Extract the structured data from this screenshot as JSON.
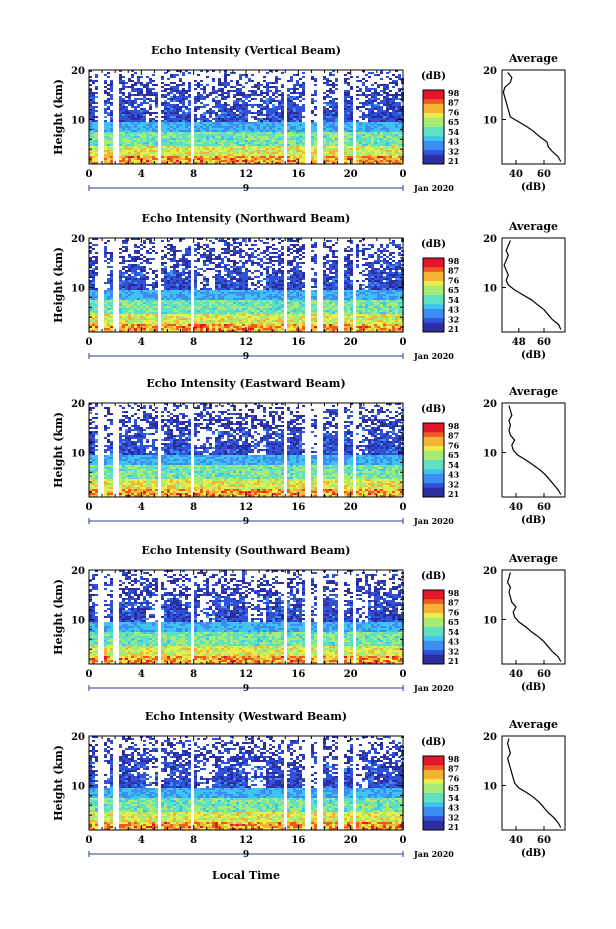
{
  "chart_data": [
    {
      "type": "heatmap",
      "title": "Echo Intensity (Vertical Beam)",
      "ylabel": "Height (km)",
      "ylim": [
        1,
        20
      ],
      "yticks": [
        "20",
        "10"
      ],
      "xticks": [
        "0",
        "4",
        "8",
        "12",
        "16",
        "20",
        "0"
      ],
      "xlim": [
        0,
        24
      ],
      "date_marker": "9",
      "date_label": "Jan 2020",
      "colorbar": {
        "unit": "(dB)",
        "ticks": [
          "98",
          "87",
          "76",
          "65",
          "54",
          "43",
          "32",
          "21"
        ]
      },
      "profile": {
        "title": "Average",
        "xlabel": "(dB)",
        "xticks": [
          "40",
          "60"
        ],
        "yticks": [
          "20",
          "10"
        ],
        "xlim": [
          30,
          75
        ],
        "heights": [
          1.5,
          2.5,
          3.5,
          4.5,
          5.5,
          6.5,
          7.5,
          8.5,
          9.5,
          10.5,
          11.5,
          12.5,
          13.5,
          14.5,
          15.5,
          16.5,
          17.5,
          18.5,
          19.5
        ],
        "values": [
          72,
          70,
          66,
          63,
          62,
          57,
          53,
          48,
          42,
          36,
          35,
          34,
          33,
          32,
          31,
          32,
          36,
          37,
          34
        ]
      }
    },
    {
      "type": "heatmap",
      "title": "Echo Intensity (Northward Beam)",
      "ylabel": "Height (km)",
      "ylim": [
        1,
        20
      ],
      "yticks": [
        "20",
        "10"
      ],
      "xticks": [
        "0",
        "4",
        "8",
        "12",
        "16",
        "20",
        "0"
      ],
      "xlim": [
        0,
        24
      ],
      "date_marker": "9",
      "date_label": "Jan 2020",
      "colorbar": {
        "unit": "(dB)",
        "ticks": [
          "98",
          "87",
          "76",
          "65",
          "54",
          "43",
          "32",
          "21"
        ]
      },
      "profile": {
        "title": "Average",
        "xlabel": "(dB)",
        "xticks": [
          "48",
          "60"
        ],
        "yticks": [
          "20",
          "10"
        ],
        "xlim": [
          40,
          70
        ],
        "heights": [
          1.5,
          2.5,
          3.5,
          4.5,
          5.5,
          6.5,
          7.5,
          8.5,
          9.5,
          10.5,
          11.5,
          12.5,
          13.5,
          14.5,
          15.5,
          16.5,
          17.5,
          18.5,
          19.5
        ],
        "values": [
          68,
          67,
          64,
          62,
          60,
          57,
          54,
          50,
          46,
          43,
          42,
          43,
          42,
          41,
          42,
          43,
          42,
          43,
          44
        ]
      }
    },
    {
      "type": "heatmap",
      "title": "Echo Intensity (Eastward Beam)",
      "ylabel": "Height (km)",
      "ylim": [
        1,
        20
      ],
      "yticks": [
        "20",
        "10"
      ],
      "xticks": [
        "0",
        "4",
        "8",
        "12",
        "16",
        "20",
        "0"
      ],
      "xlim": [
        0,
        24
      ],
      "date_marker": "9",
      "date_label": "Jan 2020",
      "colorbar": {
        "unit": "(dB)",
        "ticks": [
          "98",
          "87",
          "76",
          "65",
          "54",
          "43",
          "32",
          "21"
        ]
      },
      "profile": {
        "title": "Average",
        "xlabel": "(dB)",
        "xticks": [
          "40",
          "60"
        ],
        "yticks": [
          "20",
          "10"
        ],
        "xlim": [
          30,
          75
        ],
        "heights": [
          1.5,
          2.5,
          3.5,
          4.5,
          5.5,
          6.5,
          7.5,
          8.5,
          9.5,
          10.5,
          11.5,
          12.5,
          13.5,
          14.5,
          15.5,
          16.5,
          17.5,
          18.5,
          19.5
        ],
        "values": [
          72,
          70,
          67,
          64,
          61,
          57,
          52,
          47,
          41,
          38,
          37,
          39,
          36,
          35,
          36,
          35,
          37,
          36,
          35
        ]
      }
    },
    {
      "type": "heatmap",
      "title": "Echo Intensity (Southward Beam)",
      "ylabel": "Height (km)",
      "ylim": [
        1,
        20
      ],
      "yticks": [
        "20",
        "10"
      ],
      "xticks": [
        "0",
        "4",
        "8",
        "12",
        "16",
        "20",
        "0"
      ],
      "xlim": [
        0,
        24
      ],
      "date_marker": "9",
      "date_label": "Jan 2020",
      "colorbar": {
        "unit": "(dB)",
        "ticks": [
          "98",
          "87",
          "76",
          "65",
          "54",
          "43",
          "32",
          "21"
        ]
      },
      "profile": {
        "title": "Average",
        "xlabel": "(dB)",
        "xticks": [
          "40",
          "60"
        ],
        "yticks": [
          "20",
          "10"
        ],
        "xlim": [
          30,
          75
        ],
        "heights": [
          1.5,
          2.5,
          3.5,
          4.5,
          5.5,
          6.5,
          7.5,
          8.5,
          9.5,
          10.5,
          11.5,
          12.5,
          13.5,
          14.5,
          15.5,
          16.5,
          17.5,
          18.5,
          19.5
        ],
        "values": [
          72,
          70,
          66,
          63,
          60,
          56,
          51,
          47,
          42,
          39,
          38,
          40,
          37,
          36,
          35,
          36,
          34,
          35,
          36
        ]
      }
    },
    {
      "type": "heatmap",
      "title": "Echo Intensity (Westward Beam)",
      "ylabel": "Height (km)",
      "ylim": [
        1,
        20
      ],
      "yticks": [
        "20",
        "10"
      ],
      "xticks": [
        "0",
        "4",
        "8",
        "12",
        "16",
        "20",
        "0"
      ],
      "xlim": [
        0,
        24
      ],
      "date_marker": "9",
      "date_label": "Jan 2020",
      "colorbar": {
        "unit": "(dB)",
        "ticks": [
          "98",
          "87",
          "76",
          "65",
          "54",
          "43",
          "32",
          "21"
        ]
      },
      "profile": {
        "title": "Average",
        "xlabel": "(dB)",
        "xticks": [
          "40",
          "60"
        ],
        "yticks": [
          "20",
          "10"
        ],
        "xlim": [
          30,
          75
        ],
        "heights": [
          1.5,
          2.5,
          3.5,
          4.5,
          5.5,
          6.5,
          7.5,
          8.5,
          9.5,
          10.5,
          11.5,
          12.5,
          13.5,
          14.5,
          15.5,
          16.5,
          17.5,
          18.5,
          19.5
        ],
        "values": [
          72,
          70,
          67,
          63,
          60,
          57,
          53,
          48,
          42,
          39,
          38,
          37,
          36,
          35,
          34,
          36,
          35,
          34,
          35
        ]
      }
    }
  ],
  "xaxis_label": "Local Time"
}
